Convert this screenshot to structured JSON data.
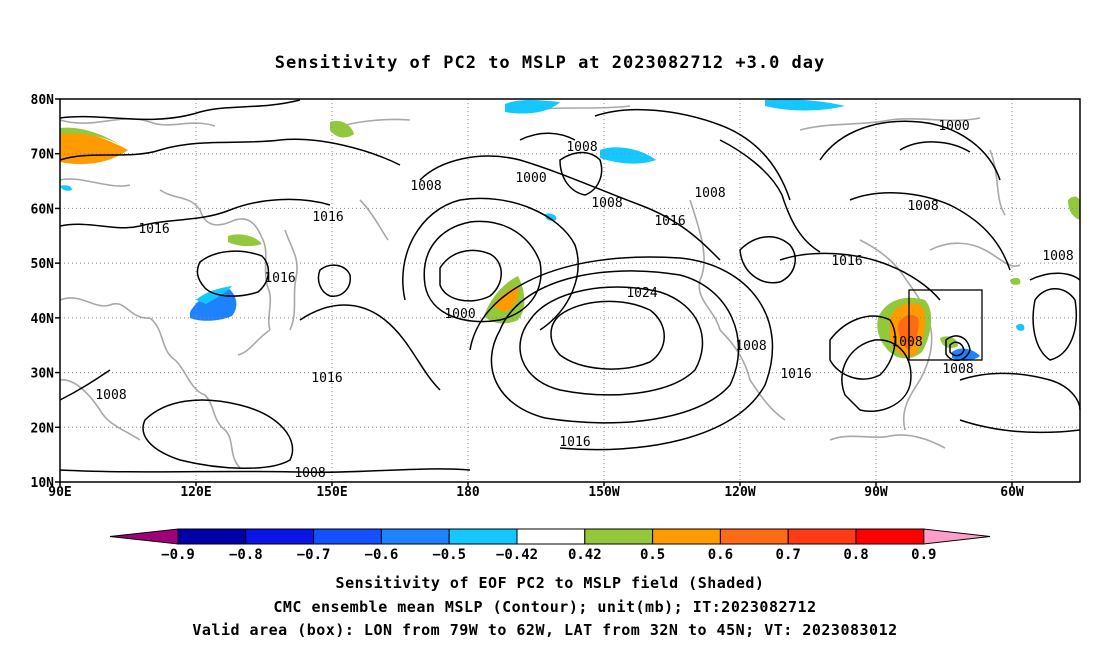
{
  "title": "Sensitivity of PC2 to MSLP at 2023082712 +3.0 day",
  "map": {
    "lat_labels": [
      "80N",
      "70N",
      "60N",
      "50N",
      "40N",
      "30N",
      "20N",
      "10N"
    ],
    "lon_labels": [
      "90E",
      "120E",
      "150E",
      "180",
      "150W",
      "120W",
      "90W",
      "60W"
    ],
    "gridlines": "dotted",
    "contour_color": "#000000",
    "coastline_color": "#a0a0a0",
    "contour_labels": [
      {
        "text": "1008",
        "id": "c1"
      },
      {
        "text": "1000",
        "id": "c2"
      },
      {
        "text": "1008",
        "id": "c3"
      },
      {
        "text": "1000",
        "id": "c4"
      },
      {
        "text": "1008",
        "id": "c5"
      },
      {
        "text": "1008",
        "id": "c6"
      },
      {
        "text": "1016",
        "id": "c7"
      },
      {
        "text": "1008",
        "id": "c8"
      },
      {
        "text": "1008",
        "id": "c9"
      },
      {
        "text": "1016",
        "id": "c10"
      },
      {
        "text": "1000",
        "id": "c11"
      },
      {
        "text": "1016",
        "id": "c12"
      },
      {
        "text": "1016",
        "id": "c13"
      },
      {
        "text": "1024",
        "id": "c14"
      },
      {
        "text": "1000",
        "id": "c15"
      },
      {
        "text": "1016",
        "id": "c16"
      },
      {
        "text": "101",
        "id": "c17"
      },
      {
        "text": "1008",
        "id": "c18"
      },
      {
        "text": "1008",
        "id": "c19"
      },
      {
        "text": "1016",
        "id": "c20"
      },
      {
        "text": "1016",
        "id": "c21"
      },
      {
        "text": "1008",
        "id": "c22"
      },
      {
        "text": "1016",
        "id": "c23"
      },
      {
        "text": "1008",
        "id": "c24"
      }
    ],
    "valid_box": {
      "lon_from": "79W",
      "lon_to": "62W",
      "lat_from": "32N",
      "lat_to": "45N"
    }
  },
  "colorbar": {
    "labels": [
      "−0.9",
      "−0.8",
      "−0.7",
      "−0.6",
      "−0.5",
      "−0.42",
      "0.42",
      "0.5",
      "0.6",
      "0.7",
      "0.8",
      "0.9"
    ],
    "colors": [
      "#a0007a",
      "#0000a8",
      "#0a14e6",
      "#1450ff",
      "#1e82ff",
      "#14c8ff",
      "#ffffff",
      "#94c83c",
      "#ff9a00",
      "#ff6a14",
      "#ff3a14",
      "#ff0000",
      "#ff9ec8"
    ]
  },
  "caption": {
    "line1": "Sensitivity of EOF PC2 to MSLP field (Shaded)",
    "line2": "CMC ensemble mean MSLP (Contour); unit(mb); IT:2023082712",
    "line3": "Valid area (box): LON from 79W to 62W, LAT from 32N to 45N; VT: 2023083012"
  }
}
